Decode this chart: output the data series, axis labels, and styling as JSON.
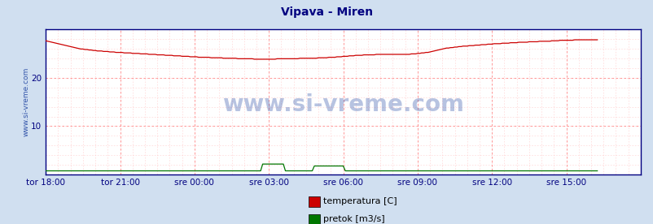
{
  "title": "Vipava - Miren",
  "title_color": "#000080",
  "title_fontsize": 10,
  "background_color": "#d0dff0",
  "plot_bg_color": "#ffffff",
  "grid_color_major": "#ff8888",
  "grid_color_minor": "#ffcccc",
  "watermark_text": "www.si-vreme.com",
  "watermark_color": "#3355aa",
  "watermark_alpha": 0.35,
  "ylabel_text": "www.si-vreme.com",
  "ylabel_color": "#3355aa",
  "ylabel_fontsize": 6.5,
  "axis_label_color": "#000080",
  "tick_label_fontsize": 7.5,
  "xtick_labels": [
    "tor 18:00",
    "tor 21:00",
    "sre 00:00",
    "sre 03:00",
    "sre 06:00",
    "sre 09:00",
    "sre 12:00",
    "sre 15:00"
  ],
  "xtick_positions": [
    0,
    36,
    72,
    108,
    144,
    180,
    216,
    252
  ],
  "ytick_positions": [
    10,
    20
  ],
  "ytick_labels": [
    "10",
    "20"
  ],
  "ylim": [
    0,
    30
  ],
  "xlim": [
    0,
    288
  ],
  "temp_color": "#cc0000",
  "pretok_color": "#007700",
  "legend_items": [
    "temperatura [C]",
    "pretok [m3/s]"
  ],
  "legend_colors": [
    "#cc0000",
    "#007700"
  ],
  "border_color": "#000080",
  "border_linewidth": 1.0,
  "line_linewidth": 0.9,
  "temp_data": [
    27.6,
    27.5,
    27.4,
    27.3,
    27.2,
    27.1,
    27.0,
    26.9,
    26.8,
    26.7,
    26.6,
    26.5,
    26.4,
    26.3,
    26.2,
    26.1,
    26.0,
    25.9,
    25.9,
    25.8,
    25.8,
    25.7,
    25.7,
    25.6,
    25.6,
    25.5,
    25.5,
    25.5,
    25.4,
    25.4,
    25.4,
    25.3,
    25.3,
    25.3,
    25.2,
    25.2,
    25.2,
    25.2,
    25.1,
    25.1,
    25.1,
    25.1,
    25.0,
    25.0,
    25.0,
    25.0,
    24.9,
    24.9,
    24.9,
    24.9,
    24.8,
    24.8,
    24.8,
    24.8,
    24.7,
    24.7,
    24.7,
    24.7,
    24.6,
    24.6,
    24.6,
    24.6,
    24.5,
    24.5,
    24.5,
    24.5,
    24.4,
    24.4,
    24.4,
    24.4,
    24.3,
    24.3,
    24.3,
    24.3,
    24.2,
    24.2,
    24.2,
    24.2,
    24.2,
    24.2,
    24.1,
    24.1,
    24.1,
    24.1,
    24.1,
    24.1,
    24.0,
    24.0,
    24.0,
    24.0,
    24.0,
    24.0,
    24.0,
    23.9,
    23.9,
    23.9,
    23.9,
    23.9,
    23.9,
    23.9,
    23.9,
    23.8,
    23.8,
    23.8,
    23.8,
    23.8,
    23.8,
    23.8,
    23.8,
    23.8,
    23.8,
    23.8,
    23.9,
    23.9,
    23.9,
    23.9,
    23.9,
    23.9,
    23.9,
    23.9,
    23.9,
    23.9,
    23.9,
    24.0,
    24.0,
    24.0,
    24.0,
    24.0,
    24.0,
    24.0,
    24.0,
    24.0,
    24.1,
    24.1,
    24.1,
    24.1,
    24.1,
    24.2,
    24.2,
    24.2,
    24.2,
    24.3,
    24.3,
    24.3,
    24.4,
    24.4,
    24.4,
    24.5,
    24.5,
    24.5,
    24.6,
    24.6,
    24.6,
    24.6,
    24.7,
    24.7,
    24.7,
    24.7,
    24.7,
    24.7,
    24.8,
    24.8,
    24.8,
    24.8,
    24.8,
    24.8,
    24.8,
    24.8,
    24.8,
    24.8,
    24.8,
    24.8,
    24.8,
    24.8,
    24.8,
    24.8,
    24.8,
    24.9,
    24.9,
    24.9,
    25.0,
    25.0,
    25.1,
    25.1,
    25.2,
    25.2,
    25.3,
    25.4,
    25.5,
    25.6,
    25.7,
    25.8,
    25.9,
    26.0,
    26.1,
    26.1,
    26.2,
    26.2,
    26.3,
    26.3,
    26.4,
    26.4,
    26.5,
    26.5,
    26.5,
    26.6,
    26.6,
    26.6,
    26.7,
    26.7,
    26.7,
    26.8,
    26.8,
    26.8,
    26.9,
    26.9,
    26.9,
    27.0,
    27.0,
    27.0,
    27.0,
    27.1,
    27.1,
    27.1,
    27.1,
    27.2,
    27.2,
    27.2,
    27.2,
    27.3,
    27.3,
    27.3,
    27.3,
    27.3,
    27.4,
    27.4,
    27.4,
    27.4,
    27.4,
    27.5,
    27.5,
    27.5,
    27.5,
    27.5,
    27.5,
    27.6,
    27.6,
    27.6,
    27.6,
    27.7,
    27.7,
    27.7,
    27.7,
    27.7,
    27.7,
    27.7,
    27.8,
    27.8,
    27.8,
    27.8,
    27.8,
    27.8,
    27.8,
    27.8,
    27.8,
    27.8,
    27.8,
    27.8
  ],
  "pretok_base": 0.8,
  "pretok_spikes": [
    {
      "start": 105,
      "end": 116,
      "val": 2.2
    },
    {
      "start": 130,
      "end": 145,
      "val": 1.8
    }
  ]
}
